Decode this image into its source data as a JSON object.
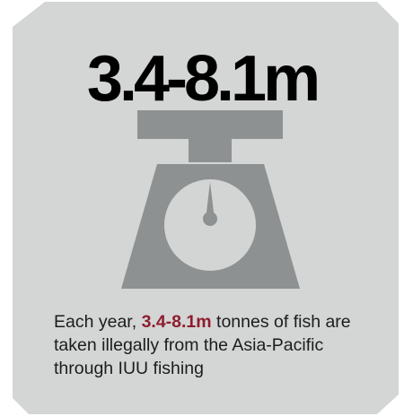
{
  "colors": {
    "card_bg": "#d4d5d5",
    "scale_gray": "#8e9192",
    "dial_face": "#d3d4d4",
    "needle": "#8e9192",
    "headline": "#000000",
    "accent": "#8f1d2d",
    "body_text": "#1c1c1c"
  },
  "headline": "3.4-8.1m",
  "icon": "weighing-scale-icon",
  "caption": {
    "prefix": "Each year, ",
    "highlight": "3.4-8.1m",
    "suffix": " tonnes of fish are taken illegally from the Asia-Pacific through IUU fishing"
  }
}
